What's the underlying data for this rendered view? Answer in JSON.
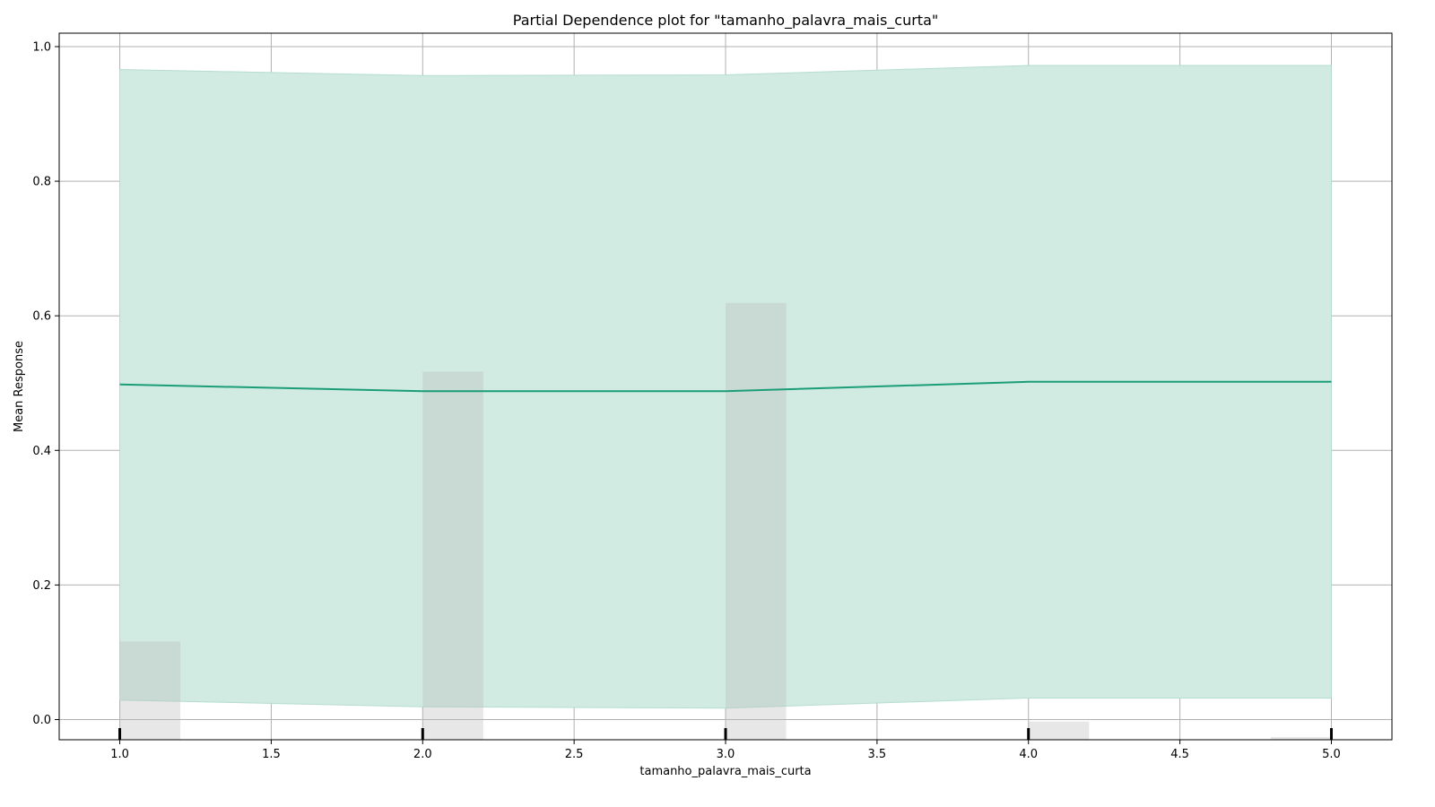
{
  "chart_data": {
    "type": "line",
    "title": "Partial Dependence plot for \"tamanho_palavra_mais_curta\"",
    "xlabel": "tamanho_palavra_mais_curta",
    "ylabel": "Mean Response",
    "xlim": [
      0.8,
      5.2
    ],
    "ylim": [
      -0.03,
      1.02
    ],
    "x_ticks": [
      1.0,
      1.5,
      2.0,
      2.5,
      3.0,
      3.5,
      4.0,
      4.5,
      5.0
    ],
    "x_tick_labels": [
      "1.0",
      "1.5",
      "2.0",
      "2.5",
      "3.0",
      "3.5",
      "4.0",
      "4.5",
      "5.0"
    ],
    "y_ticks": [
      0.0,
      0.2,
      0.4,
      0.6,
      0.8,
      1.0
    ],
    "y_tick_labels": [
      "0.0",
      "0.2",
      "0.4",
      "0.6",
      "0.8",
      "1.0"
    ],
    "grid": true,
    "series": [
      {
        "x": [
          1,
          2,
          3,
          4,
          5
        ],
        "mean": [
          0.498,
          0.488,
          0.488,
          0.502,
          0.502
        ],
        "lower": [
          0.029,
          0.019,
          0.017,
          0.032,
          0.032
        ],
        "upper": [
          0.966,
          0.957,
          0.958,
          0.972,
          0.972
        ]
      }
    ],
    "histogram": {
      "bins": [
        {
          "start": 1.0,
          "end": 1.2,
          "top": 0.116
        },
        {
          "start": 2.0,
          "end": 2.2,
          "top": 0.517
        },
        {
          "start": 3.0,
          "end": 3.2,
          "top": 0.619
        },
        {
          "start": 4.0,
          "end": 4.2,
          "top": -0.003
        },
        {
          "start": 4.8,
          "end": 5.0,
          "top": -0.026
        }
      ]
    },
    "rug": [
      1,
      2,
      3,
      4,
      5
    ],
    "colors": {
      "line": "#1b9e77",
      "band": "#d1eae2",
      "band_edge": "#b5ddd0",
      "histogram": "#bbbbbb",
      "grid": "#b0b0b0",
      "rug": "#000000"
    }
  }
}
